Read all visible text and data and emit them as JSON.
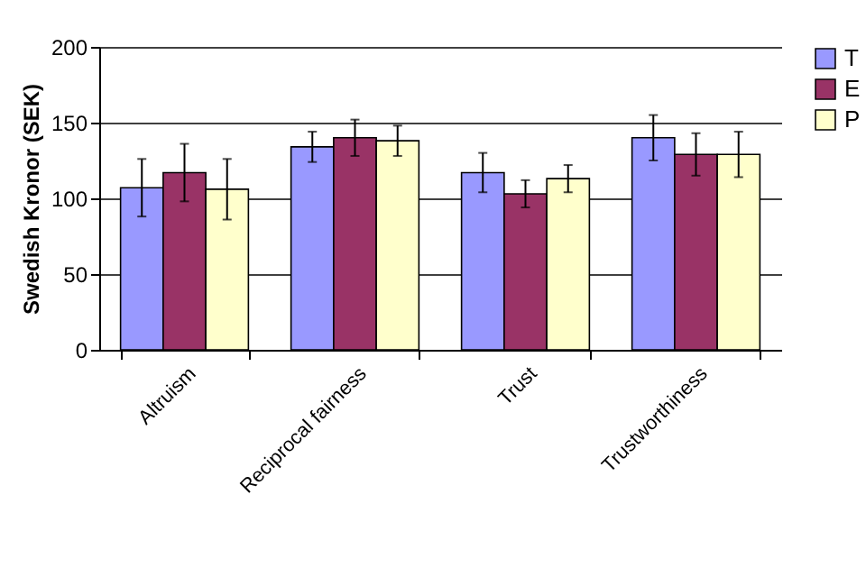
{
  "chart_data": {
    "type": "bar",
    "ylabel": "Swedish Kronor (SEK)",
    "categories": [
      "Altruism",
      "Reciprocal fairness",
      "Trust",
      "Trustworthiness"
    ],
    "series": [
      {
        "name": "T",
        "color": "#9999ff",
        "values": [
          107,
          134,
          117,
          140
        ],
        "errors": [
          19,
          10,
          13,
          15
        ]
      },
      {
        "name": "E",
        "color": "#993366",
        "values": [
          117,
          140,
          103,
          129
        ],
        "errors": [
          19,
          12,
          9,
          14
        ]
      },
      {
        "name": "P",
        "color": "#ffffcc",
        "values": [
          106,
          138,
          113,
          129
        ],
        "errors": [
          20,
          10,
          9,
          15
        ]
      }
    ],
    "ylim": [
      0,
      200
    ],
    "yticks": [
      0,
      50,
      100,
      150,
      200
    ],
    "grid": "y",
    "legend": "right"
  }
}
